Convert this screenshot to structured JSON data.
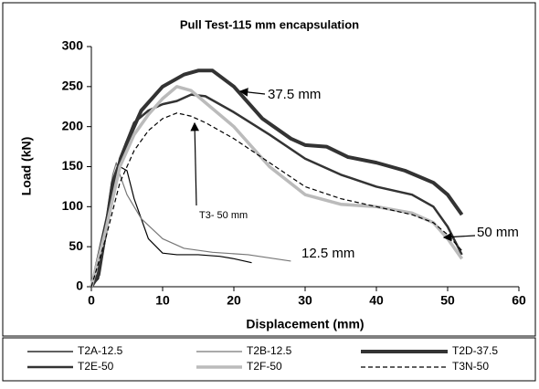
{
  "chart_data": {
    "type": "line",
    "title": "Pull Test-115 mm encapsulation",
    "x_label": "Displacement (mm)",
    "y_label": "Load (kN)",
    "xlim": [
      0,
      60
    ],
    "xticks": [
      0,
      10,
      20,
      30,
      40,
      50,
      60
    ],
    "ylim": [
      0,
      300
    ],
    "yticks": [
      0,
      50,
      100,
      150,
      200,
      250,
      300
    ],
    "series": [
      {
        "name": "T2A-12.5",
        "color": "#000000",
        "x": [
          0,
          1,
          2,
          3,
          4,
          5,
          6,
          8,
          10,
          12,
          15,
          18,
          20,
          22.5
        ],
        "values": [
          0,
          10,
          60,
          120,
          150,
          145,
          110,
          60,
          42,
          40,
          40,
          38,
          35,
          30
        ]
      },
      {
        "name": "T2B-12.5",
        "color": "#777777",
        "x": [
          0,
          1,
          2,
          3,
          3.5,
          4,
          5,
          7,
          10,
          13,
          17,
          22,
          25,
          28
        ],
        "values": [
          0,
          20,
          80,
          140,
          155,
          140,
          115,
          85,
          60,
          48,
          43,
          40,
          36,
          32
        ]
      },
      {
        "name": "T2D-37.5",
        "color": "#333333",
        "x": [
          0,
          1,
          2,
          3,
          5,
          7,
          10,
          13,
          15,
          17,
          20,
          24,
          28,
          30,
          33,
          36,
          40,
          44,
          48,
          50,
          52
        ],
        "values": [
          0,
          15,
          70,
          130,
          180,
          220,
          250,
          265,
          270,
          270,
          250,
          210,
          185,
          177,
          175,
          162,
          155,
          145,
          130,
          115,
          90
        ]
      },
      {
        "name": "T2E-50",
        "color": "#333333",
        "x": [
          0,
          2,
          4,
          6,
          8,
          10,
          12,
          14,
          16,
          20,
          25,
          30,
          35,
          40,
          45,
          48,
          50,
          52
        ],
        "values": [
          0,
          80,
          160,
          205,
          220,
          228,
          232,
          240,
          238,
          218,
          190,
          160,
          140,
          125,
          115,
          100,
          75,
          40
        ]
      },
      {
        "name": "T2F-50",
        "color": "#bbbbbb",
        "x": [
          0,
          2,
          4,
          6,
          8,
          10,
          12,
          14,
          16,
          20,
          25,
          30,
          35,
          40,
          45,
          48,
          50,
          52
        ],
        "values": [
          0,
          70,
          150,
          190,
          215,
          235,
          250,
          245,
          230,
          200,
          150,
          115,
          103,
          100,
          92,
          80,
          60,
          35
        ]
      },
      {
        "name": "T3N-50",
        "color": "#000000",
        "x": [
          0,
          2,
          4,
          6,
          8,
          10,
          12,
          14,
          16,
          20,
          25,
          30,
          35,
          40,
          45,
          48,
          50,
          52
        ],
        "values": [
          0,
          60,
          130,
          170,
          195,
          210,
          217,
          213,
          205,
          185,
          155,
          125,
          110,
          100,
          90,
          80,
          65,
          45
        ]
      }
    ],
    "annotations": [
      "37.5 mm",
      "T3- 50 mm",
      "12.5 mm",
      "50 mm"
    ]
  }
}
